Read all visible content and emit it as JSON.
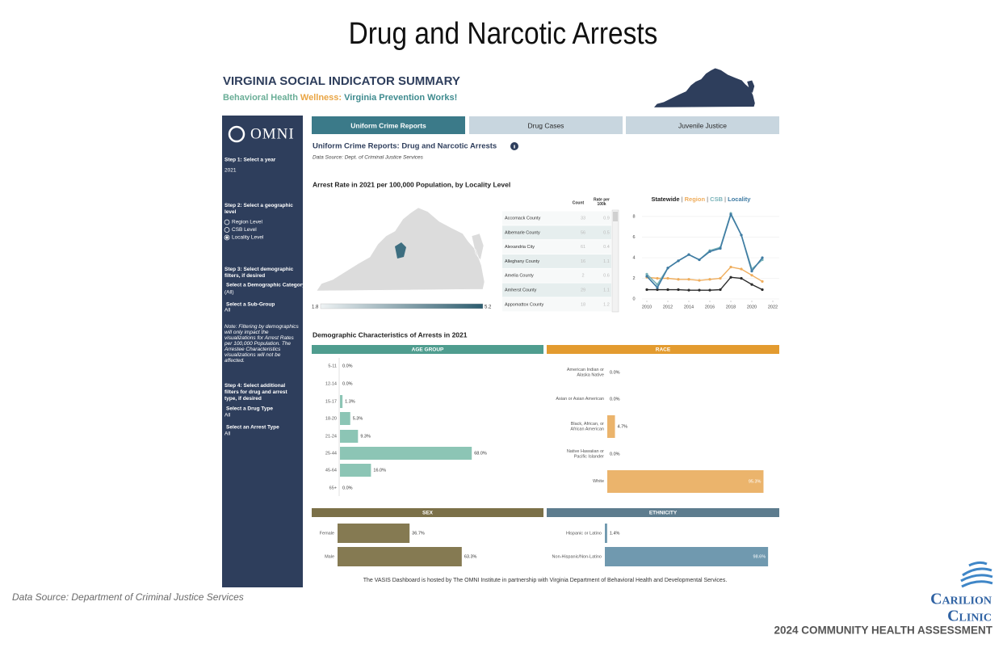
{
  "slide_title": "Drug and Narcotic Arrests",
  "header": {
    "title": "VIRGINIA SOCIAL INDICATOR SUMMARY",
    "subtitle_parts": [
      "Behavioral Health",
      "Wellness:",
      "Virginia Prevention Works!"
    ]
  },
  "sidebar": {
    "logo": "OMNI",
    "step1": {
      "label": "Step 1: Select a year",
      "value": "2021"
    },
    "step2": {
      "label": "Step 2: Select a geographic level",
      "options": [
        "Region Level",
        "CSB Level",
        "Locality Level"
      ],
      "selected": 2
    },
    "step3": {
      "label": "Step 3: Select demographic filters, if desired",
      "category_label": "Select a Demographic Category",
      "category_value": "(All)",
      "subgroup_label": "Select a Sub-Group",
      "subgroup_value": "All",
      "note": "Note: Filtering by demographics will only impact the visualizations for Arrest Rates per 100,000 Population. The Arrestee Characteristics visualizations will not be affected."
    },
    "step4": {
      "label": "Step 4: Select additional filters for drug and arrest type, if desired",
      "drug_label": "Select a Drug Type",
      "drug_value": "All",
      "arrest_label": "Select an Arrest Type",
      "arrest_value": "All"
    }
  },
  "tabs": {
    "items": [
      "Uniform Crime Reports",
      "Drug Cases",
      "Juvenile Justice"
    ],
    "active": 0
  },
  "section": {
    "title": "Uniform Crime Reports: Drug and Narcotic Arrests",
    "source": "Data Source: Dept. of Criminal Justice Services"
  },
  "map": {
    "title": "Arrest Rate in 2021 per 100,000 Population, by Locality Level",
    "legend_min": 1.8,
    "legend_max": 5.2
  },
  "table": {
    "columns": [
      "Count",
      "Rate per 100k"
    ],
    "rows": [
      [
        "Accomack County",
        33,
        0.9
      ],
      [
        "Albemarle County",
        56,
        0.5
      ],
      [
        "Alexandria City",
        61,
        0.4
      ],
      [
        "Alleghany County",
        16,
        1.1
      ],
      [
        "Amelia County",
        2,
        0.6
      ],
      [
        "Amherst County",
        29,
        1.1
      ],
      [
        "Appomattox County",
        18,
        1.2
      ]
    ]
  },
  "line_chart": {
    "type": "line",
    "separator": "|",
    "x": [
      2010,
      2011,
      2012,
      2013,
      2014,
      2015,
      2016,
      2017,
      2018,
      2019,
      2020,
      2021
    ],
    "xlim": [
      2010,
      2022
    ],
    "xticks": [
      2010,
      2012,
      2014,
      2016,
      2018,
      2020,
      2022
    ],
    "ylim": [
      0,
      8.5
    ],
    "yticks": [
      0,
      2,
      4,
      6,
      8
    ],
    "series": [
      {
        "name": "Statewide",
        "color": "#2b2b2b",
        "values": [
          0.9,
          0.9,
          0.9,
          0.9,
          0.85,
          0.85,
          0.85,
          0.9,
          2.1,
          2.0,
          1.4,
          0.9
        ]
      },
      {
        "name": "Region",
        "color": "#efad5c",
        "values": [
          2.1,
          2.0,
          2.0,
          1.9,
          1.9,
          1.8,
          1.9,
          2.0,
          3.1,
          2.9,
          2.3,
          1.7
        ]
      },
      {
        "name": "CSB",
        "color": "#79b3b9",
        "values": [
          2.4,
          1.4,
          3.0,
          3.7,
          4.3,
          3.8,
          4.7,
          5.0,
          8.3,
          6.2,
          2.9,
          3.8
        ]
      },
      {
        "name": "Locality",
        "color": "#3f7ba3",
        "values": [
          2.2,
          1.1,
          3.0,
          3.7,
          4.3,
          3.8,
          4.6,
          4.9,
          8.2,
          6.2,
          2.7,
          4.0
        ]
      }
    ]
  },
  "demographics": {
    "title": "Demographic Characteristics of Arrests in 2021",
    "panels": [
      {
        "type": "bar",
        "title": "AGE GROUP",
        "header_color": "#4f9d8f",
        "color": "#8cc5b5",
        "categories": [
          "5-11",
          "12-14",
          "15-17",
          "18-20",
          "21-24",
          "25-44",
          "45-64",
          "65+"
        ],
        "values": [
          0,
          0,
          1.3,
          5.3,
          9.3,
          68,
          16,
          0
        ],
        "value_labels": [
          "0.0%",
          "0.0%",
          "1.3%",
          "5.3%",
          "9.3%",
          "68.0%",
          "16.0%",
          "0.0%"
        ]
      },
      {
        "type": "bar",
        "title": "RACE",
        "header_color": "#e39b2f",
        "color": "#ebb46c",
        "categories": [
          "American Indian or Alaska Native",
          "Asian or Asian American",
          "Black, African, or African American",
          "Native Hawaiian or Pacific Islander",
          "White"
        ],
        "values": [
          0,
          0,
          4.7,
          0,
          95.3
        ],
        "value_labels": [
          "0.0%",
          "0.0%",
          "4.7%",
          "0.0%",
          "95.3%"
        ]
      },
      {
        "type": "bar",
        "title": "SEX",
        "header_color": "#7b7048",
        "color": "#857a52",
        "categories": [
          "Female",
          "Male"
        ],
        "values": [
          36.7,
          63.3
        ],
        "value_labels": [
          "36.7%",
          "63.3%"
        ]
      },
      {
        "type": "bar",
        "title": "ETHNICITY",
        "header_color": "#5d7c8e",
        "color": "#7099af",
        "categories": [
          "Hispanic or Latino",
          "Non-Hispanic/Non-Latino"
        ],
        "values": [
          1.4,
          98.6
        ],
        "value_labels": [
          "1.4%",
          "98.6%"
        ]
      }
    ]
  },
  "footer": "The VASIS Dashboard is hosted by The OMNI Institute in partnership with Virginia Department of Behavioral Health and Developmental Services.",
  "source_note": "Data Source: Department of Criminal Justice Services",
  "brand": {
    "name_lines": [
      "Carilion",
      "Clinic"
    ],
    "tagline": "2024 COMMUNITY HEALTH ASSESSMENT"
  }
}
